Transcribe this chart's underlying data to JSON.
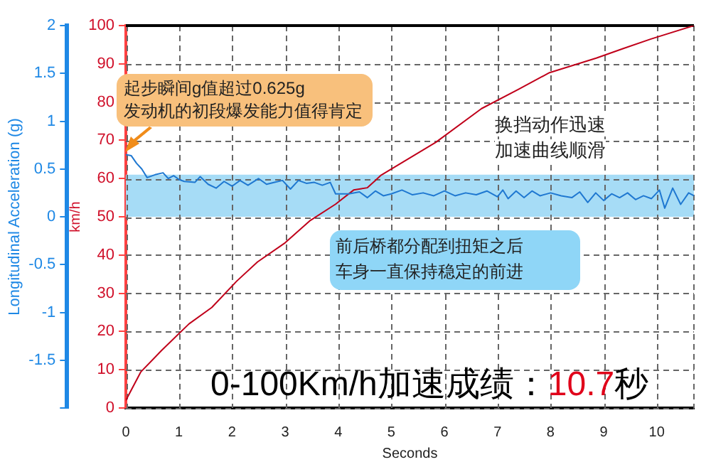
{
  "chart_data": {
    "type": "line",
    "xlabel": "Seconds",
    "ylabel": "Longitudinal Acceleration (g)",
    "y2label": "km/h",
    "xlim": [
      0,
      10.7
    ],
    "xticks": [
      0,
      1,
      2,
      3,
      4,
      5,
      6,
      7,
      8,
      9,
      10
    ],
    "ylim": [
      -2,
      2
    ],
    "yticks": [
      {
        "value": -2,
        "label": null
      },
      -1.5,
      -1,
      -0.5,
      0,
      0.5,
      1,
      1.5,
      2
    ],
    "y2lim": [
      0,
      100
    ],
    "y2ticks": [
      0,
      10,
      20,
      30,
      40,
      50,
      60,
      70,
      80,
      90,
      100
    ],
    "grid": true,
    "legend": false,
    "series": [
      {
        "color": "#1f78d1",
        "axis": "y",
        "x": [
          0,
          0.1,
          0.2,
          0.3,
          0.4,
          0.55,
          0.7,
          0.8,
          0.9,
          1.0,
          1.1,
          1.3,
          1.4,
          1.55,
          1.7,
          1.85,
          2.0,
          2.15,
          2.3,
          2.5,
          2.65,
          2.8,
          2.95,
          3.1,
          3.25,
          3.4,
          3.55,
          3.7,
          3.85,
          3.95,
          4.2,
          4.4,
          4.55,
          4.7,
          4.85,
          5.0,
          5.2,
          5.4,
          5.6,
          5.8,
          6.0,
          6.2,
          6.4,
          6.6,
          6.8,
          7.0,
          7.1,
          7.2,
          7.35,
          7.5,
          7.65,
          7.8,
          8.0,
          8.2,
          8.4,
          8.55,
          8.7,
          8.85,
          9.0,
          9.15,
          9.3,
          9.45,
          9.6,
          9.75,
          9.9,
          10.05,
          10.15,
          10.3,
          10.45,
          10.6,
          10.7
        ],
        "values": [
          0.65,
          0.64,
          0.56,
          0.5,
          0.41,
          0.44,
          0.46,
          0.4,
          0.43,
          0.39,
          0.37,
          0.36,
          0.42,
          0.34,
          0.3,
          0.37,
          0.32,
          0.38,
          0.33,
          0.4,
          0.34,
          0.36,
          0.38,
          0.29,
          0.38,
          0.35,
          0.36,
          0.33,
          0.36,
          0.24,
          0.24,
          0.26,
          0.2,
          0.27,
          0.22,
          0.24,
          0.28,
          0.23,
          0.25,
          0.22,
          0.27,
          0.22,
          0.25,
          0.23,
          0.27,
          0.21,
          0.28,
          0.19,
          0.27,
          0.2,
          0.27,
          0.22,
          0.25,
          0.22,
          0.2,
          0.26,
          0.15,
          0.25,
          0.17,
          0.24,
          0.2,
          0.25,
          0.18,
          0.22,
          0.19,
          0.28,
          0.09,
          0.3,
          0.13,
          0.25,
          0.22
        ]
      },
      {
        "color": "#c0001a",
        "axis": "y2",
        "x": [
          0,
          0.28,
          0.67,
          1.19,
          1.62,
          2.09,
          2.48,
          3.0,
          3.46,
          3.95,
          4.29,
          4.55,
          4.81,
          5.84,
          6.7,
          7.39,
          7.98,
          8.86,
          9.37,
          9.89,
          10.7
        ],
        "values": [
          2,
          9.4,
          15,
          22,
          26.3,
          33.2,
          38.2,
          43.2,
          48.9,
          53.3,
          57,
          57.6,
          60.9,
          69.5,
          78.3,
          83.3,
          87.7,
          91.5,
          94,
          96.5,
          100
        ]
      }
    ],
    "bands": [
      {
        "axis": "y2",
        "from": 50,
        "to": 61,
        "color": "#a6dcf6"
      }
    ],
    "annotations": [
      "起步瞬间g值超过0.625g",
      "发动机的初段爆发能力值得肯定",
      "换挡动作迅速",
      "加速曲线顺滑",
      "前后桥都分配到扭矩之后",
      "车身一直保持稳定的前进",
      "0-100Km/h加速成绩：10.7秒"
    ]
  }
}
